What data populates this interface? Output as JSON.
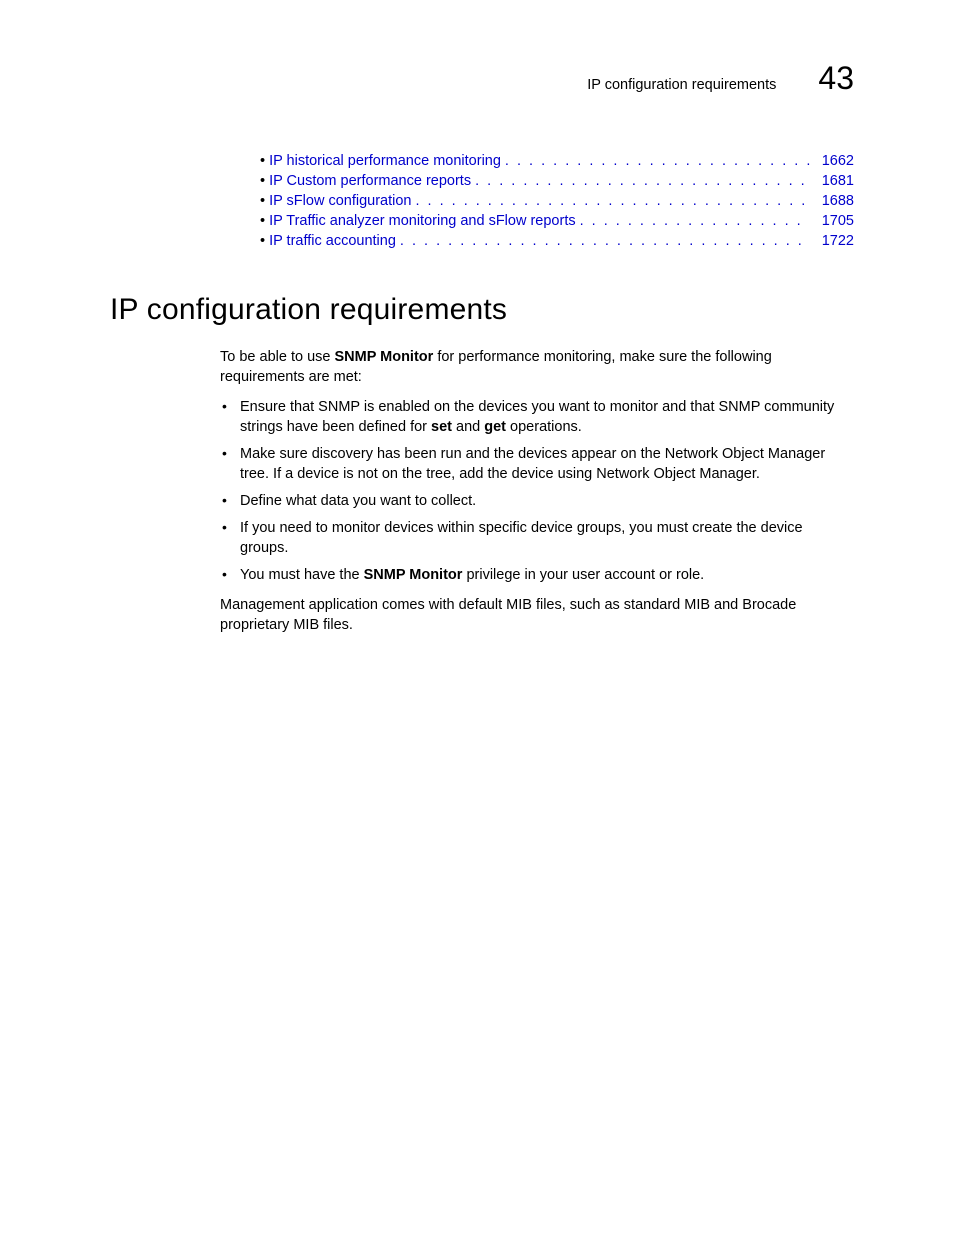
{
  "header": {
    "title": "IP configuration requirements",
    "chapter": "43"
  },
  "toc": {
    "items": [
      {
        "label": "IP historical performance monitoring",
        "page": "1662"
      },
      {
        "label": "IP Custom performance reports",
        "page": "1681"
      },
      {
        "label": "IP sFlow configuration",
        "page": "1688"
      },
      {
        "label": "IP Traffic analyzer monitoring and sFlow reports",
        "page": "1705"
      },
      {
        "label": "IP traffic accounting",
        "page": "1722"
      }
    ]
  },
  "section": {
    "heading": "IP configuration requirements",
    "intro_prefix": "To be able to use ",
    "intro_bold": "SNMP Monitor",
    "intro_suffix": " for performance monitoring, make sure the following requirements are met:",
    "bullets": {
      "b1_prefix": "Ensure that SNMP is enabled on the devices you want to monitor and that SNMP community strings have been defined for ",
      "b1_bold1": "set",
      "b1_mid": " and ",
      "b1_bold2": "get",
      "b1_suffix": " operations.",
      "b2": "Make sure discovery has been run and the devices appear on the Network Object Manager tree. If a device is not on the tree, add the device using Network Object Manager.",
      "b3": "Define what data you want to collect.",
      "b4": "If you need to monitor devices within specific device groups, you must create the device groups.",
      "b5_prefix": "You must have the ",
      "b5_bold": "SNMP Monitor",
      "b5_suffix": " privilege in your user account or role."
    },
    "closing": "Management application comes with default MIB files, such as standard MIB and Brocade proprietary MIB files."
  }
}
